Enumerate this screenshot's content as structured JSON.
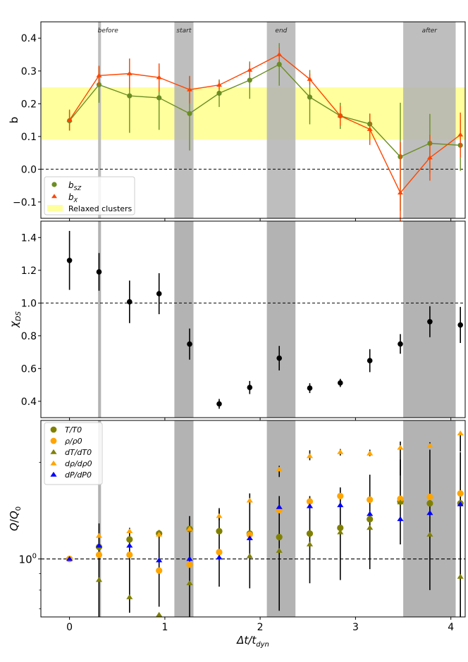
{
  "chart_data": [
    {
      "type": "line",
      "panel": "top",
      "ylabel": "b",
      "ylim": [
        -0.15,
        0.45
      ],
      "xlim": [
        -0.3,
        4.15
      ],
      "yticks": [
        -0.1,
        0.0,
        0.1,
        0.2,
        0.3,
        0.4
      ],
      "ytick_labels": [
        "−0.1",
        "0.0",
        "0.1",
        "0.2",
        "0.3",
        "0.4"
      ],
      "band_label_texts": [
        "before",
        "start",
        "end",
        "after"
      ],
      "relaxed_band": [
        0.09,
        0.25
      ],
      "reference_line": 0.0,
      "x": [
        0.0,
        0.31,
        0.63,
        0.94,
        1.26,
        1.57,
        1.89,
        2.2,
        2.52,
        2.84,
        3.15,
        3.47,
        3.78,
        4.1
      ],
      "series": [
        {
          "name": "b_SZ",
          "color": "#6b8e23",
          "marker": "circle",
          "values": [
            0.148,
            0.258,
            0.224,
            0.218,
            0.17,
            0.232,
            0.272,
            0.32,
            0.22,
            0.163,
            0.138,
            0.038,
            0.079,
            0.073
          ],
          "errors": [
            0.03,
            0.055,
            0.113,
            0.098,
            0.113,
            0.042,
            0.057,
            0.065,
            0.083,
            0.04,
            0.03,
            0.165,
            0.09,
            0.078
          ]
        },
        {
          "name": "b_X",
          "color": "#ff4500",
          "marker": "triangle",
          "values": [
            0.15,
            0.286,
            0.292,
            0.28,
            0.243,
            0.257,
            0.303,
            0.35,
            0.275,
            0.163,
            0.122,
            -0.072,
            0.035,
            0.105
          ],
          "errors": [
            0.032,
            0.03,
            0.046,
            0.043,
            0.042,
            0.013,
            0.02,
            0.022,
            0.017,
            0.03,
            0.048,
            0.155,
            0.07,
            0.068
          ]
        }
      ],
      "legend": {
        "placement": "lower-left",
        "entries": [
          "b_SZ",
          "b_X",
          "Relaxed clusters"
        ]
      }
    },
    {
      "type": "scatter",
      "panel": "middle",
      "ylabel": "χDS",
      "ylim": [
        0.3,
        1.5
      ],
      "yticks": [
        0.4,
        0.6,
        0.8,
        1.0,
        1.2,
        1.4
      ],
      "ytick_labels": [
        "0.4",
        "0.6",
        "0.8",
        "1.0",
        "1.2",
        "1.4"
      ],
      "reference_line": 1.0,
      "x": [
        0.0,
        0.31,
        0.63,
        0.94,
        1.26,
        1.57,
        1.89,
        2.2,
        2.52,
        2.84,
        3.15,
        3.47,
        3.78,
        4.1
      ],
      "values": [
        1.26,
        1.19,
        1.007,
        1.057,
        0.749,
        0.384,
        0.484,
        0.663,
        0.48,
        0.512,
        0.648,
        0.75,
        0.886,
        0.866
      ],
      "errors": [
        0.18,
        0.115,
        0.13,
        0.125,
        0.095,
        0.03,
        0.04,
        0.075,
        0.03,
        0.025,
        0.07,
        0.06,
        0.095,
        0.11
      ]
    },
    {
      "type": "scatter",
      "panel": "bottom",
      "yscale": "log",
      "ylabel": "Q/Q0",
      "ylim": [
        0.66,
        2.7
      ],
      "ytick_labels": [
        "10⁰"
      ],
      "reference_line": 1.0,
      "xlabel": "Δt/tdyn",
      "xticks": [
        0,
        1,
        2,
        3,
        4
      ],
      "xtick_labels": [
        "0",
        "1",
        "2",
        "3",
        "4"
      ],
      "series": [
        {
          "name": "T/T0",
          "color": "#808000",
          "marker": "circle",
          "x": [
            0.0,
            0.31,
            0.63,
            0.94,
            1.26,
            1.57,
            1.89,
            2.2,
            2.52,
            2.84,
            3.15,
            3.47,
            3.78,
            4.1
          ],
          "values": [
            1.0,
            1.09,
            1.15,
            1.2,
            1.24,
            1.22,
            1.2,
            1.17,
            1.2,
            1.25,
            1.33,
            1.51,
            1.49,
            1.49
          ],
          "err_low": [
            0.0,
            0.45,
            0.47,
            0.49,
            0.58,
            0.4,
            0.39,
            0.48,
            0.36,
            0.39,
            0.4,
            0.4,
            0.69,
            0.87
          ],
          "err_high": [
            0.0,
            0.2,
            0.1,
            0.03,
            0.12,
            0.2,
            0.3,
            0.4,
            0.37,
            0.42,
            0.5,
            0.53,
            0.7,
            0.66
          ]
        },
        {
          "name": "ρ/ρ0",
          "color": "#ffa500",
          "marker": "circle",
          "x": [
            0.0,
            0.31,
            0.63,
            0.94,
            1.26,
            1.57,
            1.89,
            2.2,
            2.52,
            2.84,
            3.15,
            3.47,
            3.78,
            4.1
          ],
          "values": [
            1.0,
            1.03,
            1.03,
            0.92,
            0.96,
            1.05,
            1.19,
            1.42,
            1.51,
            1.57,
            1.53,
            1.54,
            1.56,
            1.6
          ]
        },
        {
          "name": "dT/dT0",
          "color": "#808000",
          "marker": "triangle",
          "x": [
            0.31,
            0.63,
            0.94,
            1.26,
            1.89,
            2.2,
            2.52,
            2.84,
            3.15,
            3.47,
            3.78,
            4.1
          ],
          "values": [
            0.86,
            0.76,
            0.67,
            0.84,
            1.02,
            1.06,
            1.11,
            1.21,
            1.25,
            1.5,
            1.19,
            0.88
          ]
        },
        {
          "name": "dρ/dρ0",
          "color": "#ffa500",
          "marker": "triangle",
          "x": [
            0.31,
            0.63,
            0.94,
            1.26,
            1.57,
            1.89,
            2.2,
            2.52,
            2.84,
            3.15,
            3.47,
            3.78,
            4.1
          ],
          "values": [
            1.18,
            1.22,
            1.19,
            1.24,
            1.36,
            1.52,
            1.9,
            2.09,
            2.15,
            2.13,
            2.22,
            2.25,
            2.46
          ],
          "err_low": [
            0.0,
            0.0,
            0.0,
            0.0,
            0.04,
            0.05,
            0.1,
            0.06,
            0.05,
            0.04,
            0.4,
            0.0,
            0.3
          ],
          "err_high": [
            0.0,
            0.0,
            0.0,
            0.0,
            0.08,
            0.08,
            0.05,
            0.09,
            0.05,
            0.06,
            0.1,
            0.06,
            0.0
          ]
        },
        {
          "name": "dP/dP0",
          "color": "#0000ff",
          "marker": "triangle",
          "x": [
            0.0,
            0.31,
            0.63,
            0.94,
            1.26,
            1.57,
            1.89,
            2.2,
            2.52,
            2.84,
            3.15,
            3.47,
            3.78,
            4.1
          ],
          "values": [
            1.0,
            1.1,
            1.1,
            0.99,
            1.0,
            1.01,
            1.16,
            1.45,
            1.46,
            1.47,
            1.38,
            1.33,
            1.39,
            1.48
          ]
        }
      ],
      "legend": {
        "placement": "top-left",
        "entries": [
          "T/T0",
          "ρ/ρ0",
          "dT/dT0",
          "dρ/dρ0",
          "dP/dP0"
        ]
      }
    }
  ],
  "shaded_bands": [
    {
      "label": "before",
      "x0": 0.3,
      "x1": 0.33
    },
    {
      "label": "start",
      "x0": 1.1,
      "x1": 1.3
    },
    {
      "label": "end",
      "x0": 2.07,
      "x1": 2.37
    },
    {
      "label": "after",
      "x0": 3.5,
      "x1": 4.05
    }
  ],
  "colors": {
    "band": "#b3b3b3",
    "relaxed_band": "#ffff9e",
    "bsz": "#6b8e23",
    "bx": "#ff4500",
    "black": "#000000",
    "olive": "#808000",
    "orange": "#ffa500",
    "blue": "#0000ff"
  },
  "legends": {
    "top": [
      "b_SZ",
      "b_X",
      "Relaxed clusters"
    ],
    "bottom": [
      "T/T0",
      "ρ/ρ0",
      "dT/dT0",
      "dρ/dρ0",
      "dP/dP0"
    ]
  },
  "labels": {
    "b": "b",
    "chi": "χ",
    "chi_sub": "DS",
    "q": "Q",
    "q_sub": "0",
    "q_slash": "/",
    "x_main": "Δt",
    "x_slash": "/t",
    "x_sub": "dyn",
    "ten": "10",
    "ten_exp": "0"
  }
}
